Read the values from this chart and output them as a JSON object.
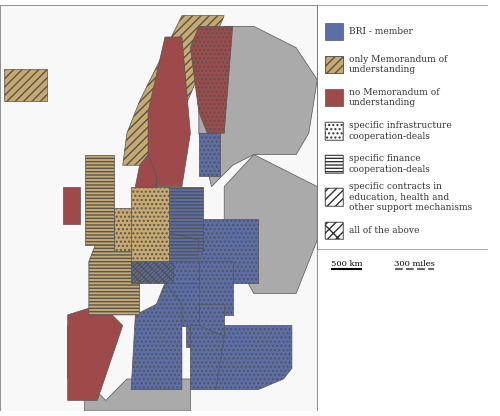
{
  "legend_items": [
    {
      "label": "BRI - member",
      "facecolor": "#5b6ea8",
      "edgecolor": "#333333",
      "hatch": ""
    },
    {
      "label": "only Memorandum of\nunderstanding",
      "facecolor": "#c8a96e",
      "edgecolor": "#333333",
      "hatch": ""
    },
    {
      "label": "no Memorandum of\nunderstanding",
      "facecolor": "#9e4a4a",
      "edgecolor": "#333333",
      "hatch": ""
    },
    {
      "label": "specific infrastructure\ncooperation-deals",
      "facecolor": "#ffffff",
      "edgecolor": "#333333",
      "hatch": "..."
    },
    {
      "label": "specific finance\ncooperation-deals",
      "facecolor": "#ffffff",
      "edgecolor": "#333333",
      "hatch": "==="
    },
    {
      "label": "specific contracts in\neducation, health and\nother support mechanisms",
      "facecolor": "#ffffff",
      "edgecolor": "#333333",
      "hatch": "///"
    },
    {
      "label": "all of the above",
      "facecolor": "#ffffff",
      "edgecolor": "#333333",
      "hatch": "x//"
    }
  ],
  "scale_bar": {
    "km_label": "500 km",
    "miles_label": "300 miles"
  },
  "background_color": "#ffffff",
  "legend_box_color": "#ffffff",
  "legend_border_color": "#333333",
  "map_ocean_color": "#ffffff",
  "map_land_nodata_color": "#aaaaaa",
  "title_fontsize": 8,
  "legend_fontsize": 7
}
